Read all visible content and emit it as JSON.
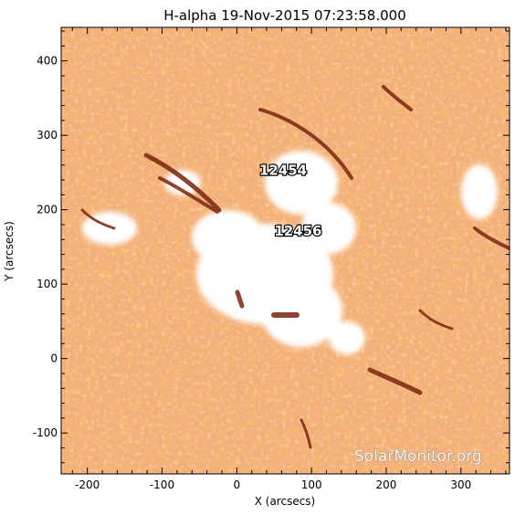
{
  "title": "H-alpha 19-Nov-2015 07:23:58.000",
  "axes": {
    "xlabel": "X (arcsecs)",
    "ylabel": "Y (arcsecs)",
    "xlim": [
      -235,
      365
    ],
    "ylim": [
      -155,
      445
    ],
    "xticks": [
      -200,
      -100,
      0,
      100,
      200,
      300
    ],
    "yticks": [
      -100,
      0,
      100,
      200,
      300,
      400
    ]
  },
  "regions": [
    {
      "label": "12454",
      "x": 62,
      "y": 247
    },
    {
      "label": "12456",
      "x": 82,
      "y": 165
    }
  ],
  "watermark": "SolarMonitor.org",
  "colors": {
    "background": "#ffffff",
    "plasma": "#e8782a",
    "plasma_dark": "#8a2a10",
    "plasma_light": "#f6c9a0"
  }
}
